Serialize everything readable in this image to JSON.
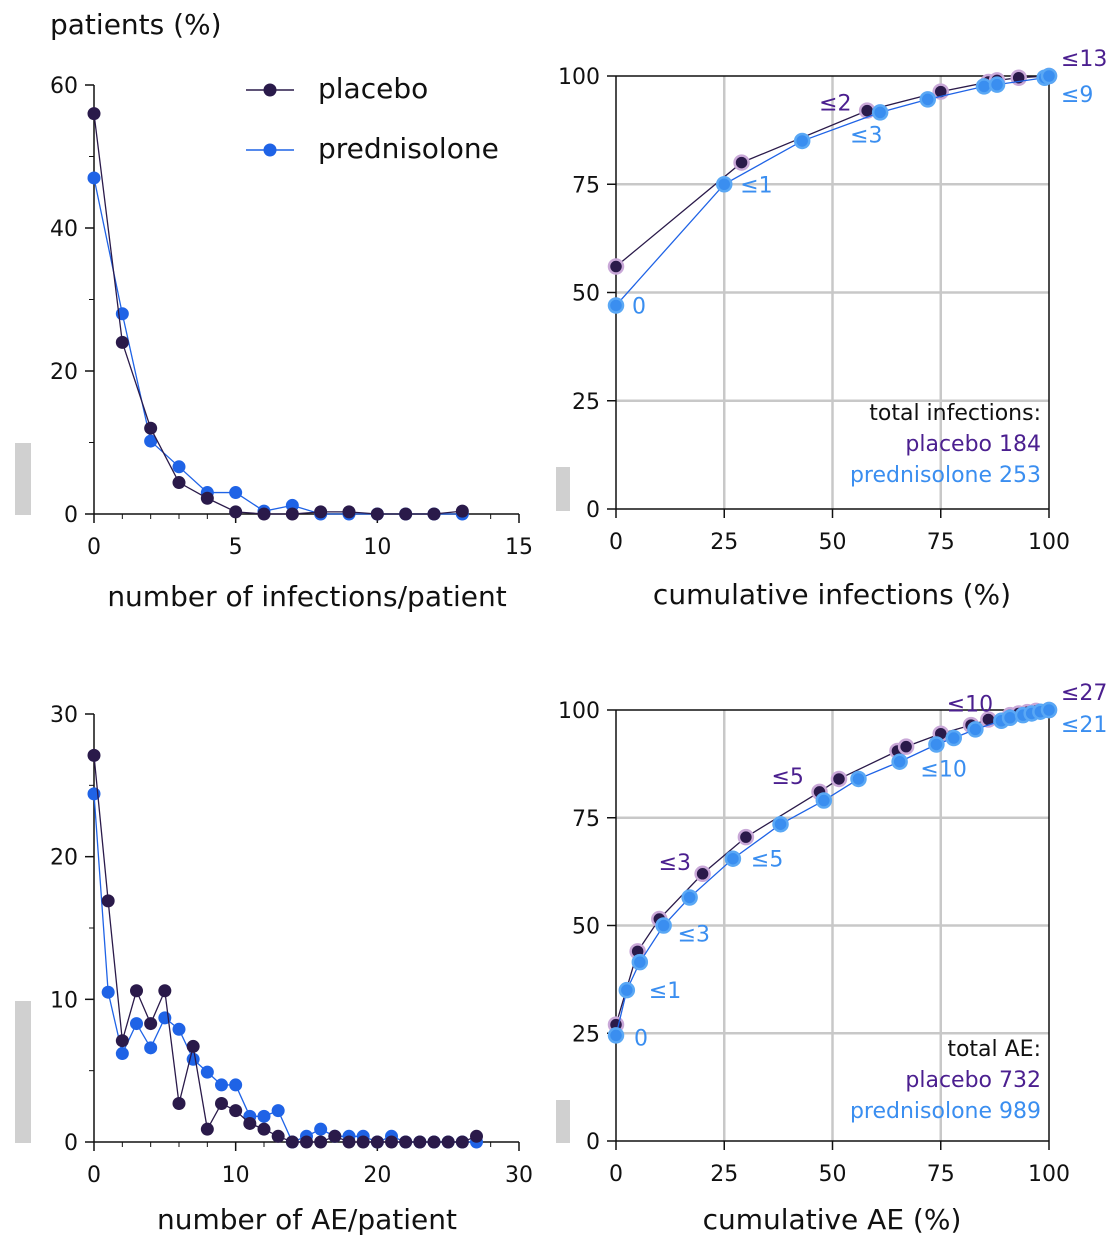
{
  "figure": {
    "y_title": "patients (%)",
    "legend": [
      {
        "label": "placebo",
        "color": "#2a1a4a"
      },
      {
        "label": "prednisolone",
        "color": "#1f63e6"
      }
    ],
    "colors": {
      "placebo": "#2a1a4a",
      "prednisolone": "#1f63e6",
      "placebo_text": "#4b1f8f",
      "prednisolone_text": "#3a8ef0",
      "grid": "#c8c8c8"
    }
  },
  "chart_data": [
    {
      "type": "line",
      "panel": "infections-distribution",
      "xlabel": "number of infections/patient",
      "ylabel": "patients (%)",
      "xlim": [
        0,
        15
      ],
      "ylim": [
        0,
        60
      ],
      "xticks": [
        "0",
        "5",
        "10",
        "15"
      ],
      "yticks": [
        "0",
        "20",
        "40",
        "60"
      ],
      "series": [
        {
          "name": "placebo",
          "x": [
            0,
            1,
            2,
            3,
            4,
            5,
            6,
            7,
            8,
            9,
            10,
            11,
            12,
            13
          ],
          "y": [
            56,
            24,
            12,
            4.4,
            2.2,
            0.3,
            0,
            0,
            0.3,
            0.3,
            0,
            0,
            0,
            0.4
          ]
        },
        {
          "name": "prednisolone",
          "x": [
            0,
            1,
            2,
            3,
            4,
            5,
            6,
            7,
            8,
            9,
            10,
            11,
            12,
            13
          ],
          "y": [
            47,
            28,
            10.2,
            6.6,
            3,
            3,
            0.4,
            1.2,
            0,
            0,
            0,
            0,
            0,
            0
          ]
        }
      ]
    },
    {
      "type": "line",
      "panel": "cumulative-infections",
      "xlabel": "cumulative infections (%)",
      "xlim": [
        0,
        100
      ],
      "ylim": [
        0,
        100
      ],
      "xticks": [
        "0",
        "25",
        "50",
        "75",
        "100"
      ],
      "yticks": [
        "0",
        "25",
        "50",
        "75",
        "100"
      ],
      "grid": true,
      "series": [
        {
          "name": "placebo",
          "x": [
            0,
            29,
            58,
            75,
            86,
            88,
            93,
            100
          ],
          "y": [
            56,
            80,
            92,
            96.4,
            98.6,
            99,
            99.6,
            100
          ]
        },
        {
          "name": "prednisolone",
          "x": [
            0,
            25,
            43,
            61,
            72,
            85,
            88,
            99,
            100
          ],
          "y": [
            47,
            75,
            85,
            91.6,
            94.6,
            97.6,
            98,
            99.6,
            100
          ]
        }
      ],
      "annotations": [
        {
          "text": "0",
          "series": "prednisolone",
          "x": 0,
          "y": 47
        },
        {
          "text": "≤1",
          "series": "prednisolone",
          "x": 25,
          "y": 75
        },
        {
          "text": "≤2",
          "series": "placebo",
          "x": 58,
          "y": 92
        },
        {
          "text": "≤3",
          "series": "prednisolone",
          "x": 61,
          "y": 91.6
        },
        {
          "text": "≤13",
          "series": "placebo",
          "x": 100,
          "y": 100
        },
        {
          "text": "≤9",
          "series": "prednisolone",
          "x": 100,
          "y": 100
        }
      ],
      "totals": {
        "title": "total infections:",
        "placebo": "placebo 184",
        "prednisolone": "prednisolone 253"
      }
    },
    {
      "type": "line",
      "panel": "ae-distribution",
      "xlabel": "number of AE/patient",
      "xlim": [
        0,
        30
      ],
      "ylim": [
        0,
        30
      ],
      "xticks": [
        "0",
        "10",
        "20",
        "30"
      ],
      "yticks": [
        "0",
        "10",
        "20",
        "30"
      ],
      "series": [
        {
          "name": "placebo",
          "x": [
            0,
            1,
            2,
            3,
            4,
            5,
            6,
            7,
            8,
            9,
            10,
            11,
            12,
            13,
            14,
            15,
            16,
            17,
            18,
            19,
            20,
            21,
            22,
            23,
            24,
            25,
            26,
            27
          ],
          "y": [
            27.1,
            16.9,
            7.1,
            10.6,
            8.3,
            10.6,
            2.7,
            6.7,
            0.9,
            2.7,
            2.2,
            1.3,
            0.9,
            0.4,
            0,
            0,
            0,
            0.4,
            0,
            0,
            0,
            0,
            0,
            0,
            0,
            0,
            0,
            0.4
          ]
        },
        {
          "name": "prednisolone",
          "x": [
            0,
            1,
            2,
            3,
            4,
            5,
            6,
            7,
            8,
            9,
            10,
            11,
            12,
            13,
            14,
            15,
            16,
            17,
            18,
            19,
            20,
            21,
            22,
            23,
            24,
            25,
            26,
            27
          ],
          "y": [
            24.4,
            10.5,
            6.2,
            8.3,
            6.6,
            8.7,
            7.9,
            5.8,
            4.9,
            4,
            4,
            1.8,
            1.8,
            2.2,
            0,
            0.4,
            0.9,
            0.4,
            0.4,
            0.4,
            0,
            0.4,
            0,
            0,
            0,
            0,
            0,
            0
          ]
        }
      ]
    },
    {
      "type": "line",
      "panel": "cumulative-ae",
      "xlabel": "cumulative AE (%)",
      "xlim": [
        0,
        100
      ],
      "ylim": [
        0,
        100
      ],
      "xticks": [
        "0",
        "25",
        "50",
        "75",
        "100"
      ],
      "yticks": [
        "0",
        "25",
        "50",
        "75",
        "100"
      ],
      "grid": true,
      "series": [
        {
          "name": "placebo",
          "x": [
            0,
            5,
            10,
            20,
            30,
            47,
            51.5,
            65,
            67,
            75,
            82,
            86,
            91,
            93,
            95,
            97,
            100
          ],
          "y": [
            27,
            44,
            51.5,
            62,
            70.5,
            81,
            84,
            90.5,
            91.5,
            94.5,
            96.5,
            97.8,
            98.8,
            99.2,
            99.5,
            99.8,
            100
          ]
        },
        {
          "name": "prednisolone",
          "x": [
            0,
            2.5,
            5.5,
            11,
            17,
            27,
            38,
            48,
            56,
            65.5,
            74,
            78,
            83,
            89,
            91,
            94,
            96,
            98,
            100
          ],
          "y": [
            24.5,
            35,
            41.5,
            50,
            56.5,
            65.5,
            73.5,
            79,
            84,
            88,
            92,
            93.5,
            95.5,
            97.5,
            98.2,
            98.8,
            99.2,
            99.6,
            100
          ]
        }
      ],
      "annotations": [
        {
          "text": "0",
          "series": "prednisolone",
          "x": 0,
          "y": 24.5
        },
        {
          "text": "≤1",
          "series": "prednisolone",
          "x": 2.5,
          "y": 35
        },
        {
          "text": "≤3",
          "series": "placebo",
          "x": 20,
          "y": 62
        },
        {
          "text": "≤3",
          "series": "prednisolone",
          "x": 11,
          "y": 50
        },
        {
          "text": "≤5",
          "series": "placebo",
          "x": 47,
          "y": 81
        },
        {
          "text": "≤5",
          "series": "prednisolone",
          "x": 27,
          "y": 65.5
        },
        {
          "text": "≤10",
          "series": "placebo",
          "x": 75,
          "y": 94.5
        },
        {
          "text": "≤10",
          "series": "prednisolone",
          "x": 74,
          "y": 92
        },
        {
          "text": "≤27",
          "series": "placebo",
          "x": 100,
          "y": 100
        },
        {
          "text": "≤21",
          "series": "prednisolone",
          "x": 100,
          "y": 100
        }
      ],
      "totals": {
        "title": "total AE:",
        "placebo": "placebo 732",
        "prednisolone": "prednisolone 989"
      }
    }
  ]
}
